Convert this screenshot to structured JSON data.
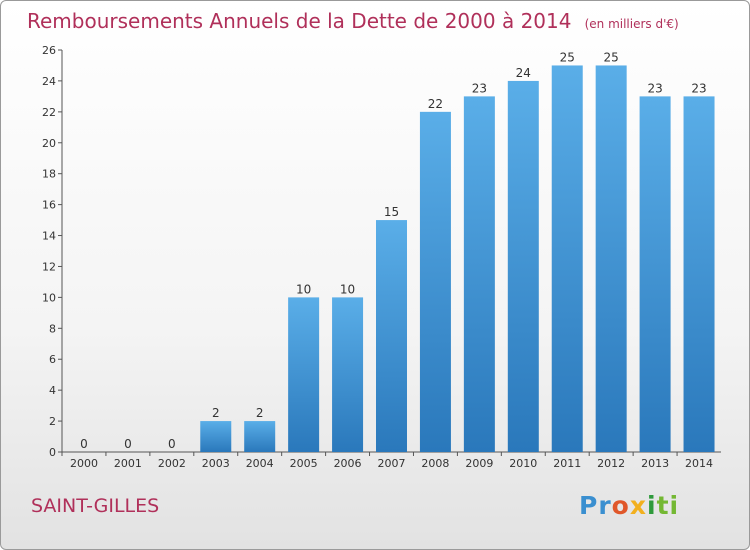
{
  "chart_data": {
    "type": "bar",
    "title": "Remboursements Annuels de la Dette de 2000 à 2014",
    "unit": "(en milliers d'€)",
    "categories": [
      "2000",
      "2001",
      "2002",
      "2003",
      "2004",
      "2005",
      "2006",
      "2007",
      "2008",
      "2009",
      "2010",
      "2011",
      "2012",
      "2013",
      "2014"
    ],
    "values": [
      0,
      0,
      0,
      2,
      2,
      10,
      10,
      15,
      22,
      23,
      24,
      25,
      25,
      23,
      23
    ],
    "ylim": [
      0,
      26
    ],
    "yticks": [
      0,
      2,
      4,
      6,
      8,
      10,
      12,
      14,
      16,
      18,
      20,
      22,
      24,
      26
    ],
    "grid": false,
    "bar_color": "#3d8fd6"
  },
  "city": "SAINT-GILLES",
  "brand": {
    "letters": [
      "Pr",
      "o",
      "x",
      "i",
      "ti"
    ]
  }
}
